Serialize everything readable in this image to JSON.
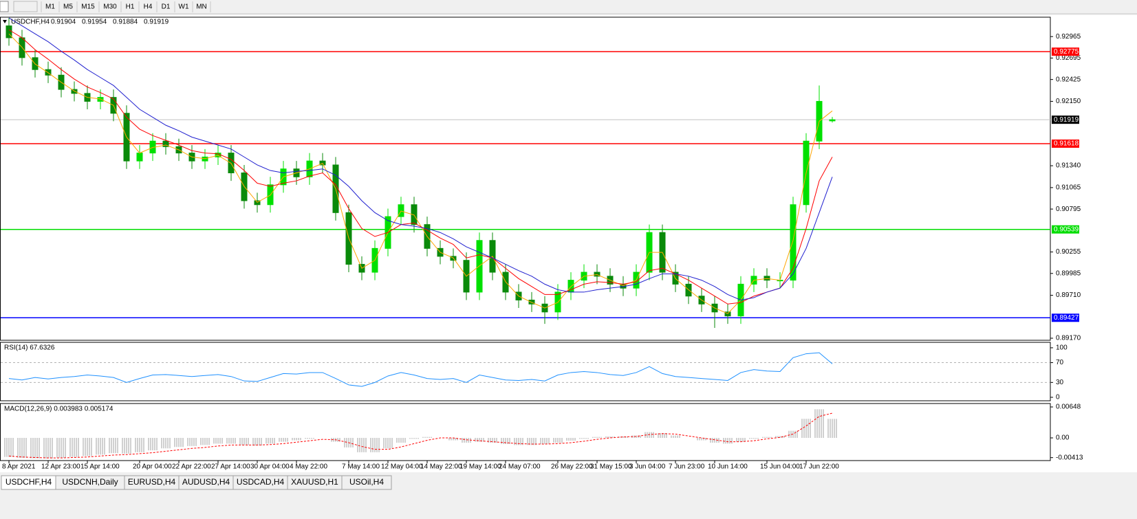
{
  "toolbar": {
    "timeframes": [
      "M1",
      "M5",
      "M15",
      "M30",
      "H1",
      "H4",
      "D1",
      "W1",
      "MN"
    ]
  },
  "tabs": [
    "USDCHF,H4",
    "USDCNH,Daily",
    "EURUSD,H4",
    "AUDUSD,H4",
    "USDCAD,H4",
    "XAUUSD,H1",
    "USOil,H4"
  ],
  "chart_data": [
    {
      "type": "candlestick",
      "title": "USDCHF,H4",
      "categories": [
        "8 Apr 2021",
        null,
        null,
        "12 Apr 23:00",
        null,
        null,
        "15 Apr 14:00",
        null,
        null,
        null,
        "20 Apr 04:00",
        null,
        null,
        "22 Apr 22:00",
        null,
        null,
        "27 Apr 14:00",
        null,
        null,
        "30 Apr 04:00",
        null,
        null,
        "4 May 22:00",
        null,
        null,
        null,
        "7 May 14:00",
        null,
        null,
        "12 May 04:00",
        null,
        null,
        "14 May 22:00",
        null,
        null,
        "19 May 14:00",
        null,
        null,
        "24 May 07:00",
        null,
        null,
        null,
        "26 May 22:00",
        null,
        null,
        "31 May 15:00",
        null,
        null,
        "3 Jun 04:00",
        null,
        null,
        "7 Jun 23:00",
        null,
        null,
        "10 Jun 14:00",
        null,
        null,
        null,
        "15 Jun 04:00",
        null,
        null,
        "17 Jun 22:00",
        null,
        null
      ],
      "open": [
        0.931,
        0.9295,
        0.927,
        0.9255,
        0.9248,
        0.923,
        0.9225,
        0.9215,
        0.922,
        0.92,
        0.914,
        0.915,
        0.9165,
        0.9158,
        0.915,
        0.914,
        0.9145,
        0.915,
        0.9125,
        0.909,
        0.9085,
        0.911,
        0.913,
        0.912,
        0.914,
        0.9135,
        0.9075,
        0.901,
        0.9,
        0.903,
        0.907,
        0.9085,
        0.906,
        0.903,
        0.902,
        0.9015,
        0.8975,
        0.904,
        0.9,
        0.8975,
        0.8965,
        0.896,
        0.895,
        0.8975,
        0.899,
        0.9,
        0.8995,
        0.8985,
        0.898,
        0.9,
        0.905,
        0.9,
        0.8985,
        0.897,
        0.896,
        0.895,
        0.8945,
        0.8985,
        0.8995,
        0.899,
        0.899,
        0.9085,
        0.9165,
        0.91904
      ],
      "high": [
        0.932,
        0.9305,
        0.928,
        0.9265,
        0.9258,
        0.924,
        0.9235,
        0.923,
        0.923,
        0.921,
        0.916,
        0.9175,
        0.9175,
        0.9168,
        0.916,
        0.9155,
        0.916,
        0.916,
        0.9135,
        0.91,
        0.912,
        0.914,
        0.914,
        0.915,
        0.915,
        0.9145,
        0.9085,
        0.902,
        0.904,
        0.908,
        0.9095,
        0.9095,
        0.907,
        0.904,
        0.903,
        0.9025,
        0.905,
        0.905,
        0.901,
        0.8985,
        0.8975,
        0.897,
        0.8985,
        0.9,
        0.901,
        0.901,
        0.9005,
        0.8995,
        0.901,
        0.906,
        0.906,
        0.901,
        0.8995,
        0.898,
        0.897,
        0.896,
        0.8995,
        0.9005,
        0.9005,
        0.9,
        0.9095,
        0.9175,
        0.9235,
        0.91954
      ],
      "low": [
        0.9285,
        0.926,
        0.9245,
        0.9238,
        0.922,
        0.9215,
        0.9205,
        0.9205,
        0.919,
        0.913,
        0.913,
        0.914,
        0.9148,
        0.914,
        0.913,
        0.913,
        0.9135,
        0.9115,
        0.908,
        0.9075,
        0.9075,
        0.91,
        0.911,
        0.911,
        0.9125,
        0.9065,
        0.9,
        0.899,
        0.899,
        0.902,
        0.906,
        0.905,
        0.902,
        0.901,
        0.9005,
        0.8965,
        0.8965,
        0.899,
        0.8965,
        0.8955,
        0.895,
        0.8935,
        0.894,
        0.8965,
        0.898,
        0.8985,
        0.8975,
        0.897,
        0.897,
        0.899,
        0.899,
        0.8975,
        0.896,
        0.895,
        0.893,
        0.8935,
        0.8935,
        0.8975,
        0.898,
        0.898,
        0.898,
        0.9075,
        0.9155,
        0.91884
      ],
      "close": [
        0.9295,
        0.927,
        0.9255,
        0.9248,
        0.923,
        0.9225,
        0.9215,
        0.922,
        0.92,
        0.914,
        0.915,
        0.9165,
        0.9158,
        0.915,
        0.914,
        0.9145,
        0.915,
        0.9125,
        0.909,
        0.9085,
        0.911,
        0.913,
        0.912,
        0.914,
        0.9135,
        0.9075,
        0.901,
        0.9,
        0.903,
        0.907,
        0.9085,
        0.906,
        0.903,
        0.902,
        0.9015,
        0.8975,
        0.904,
        0.9,
        0.8975,
        0.8965,
        0.896,
        0.895,
        0.8975,
        0.899,
        0.9,
        0.8995,
        0.8985,
        0.898,
        0.9,
        0.905,
        0.9,
        0.8985,
        0.897,
        0.896,
        0.895,
        0.8945,
        0.8985,
        0.8995,
        0.899,
        0.899,
        0.9085,
        0.9165,
        0.9215,
        0.91919
      ],
      "up_color": "#00e000",
      "down_color": "#0a8a0a",
      "last_color": "#c0c0c0",
      "series": [
        {
          "color": "#ffa500",
          "values": [
            0.93,
            0.9283,
            0.9262,
            0.9251,
            0.9239,
            0.9228,
            0.922,
            0.9218,
            0.921,
            0.917,
            0.915,
            0.9157,
            0.916,
            0.9154,
            0.9145,
            0.9143,
            0.9147,
            0.9137,
            0.9108,
            0.9088,
            0.9097,
            0.912,
            0.9125,
            0.913,
            0.9137,
            0.9105,
            0.9043,
            0.9005,
            0.9015,
            0.905,
            0.9077,
            0.9072,
            0.9045,
            0.9025,
            0.9018,
            0.8995,
            0.9008,
            0.902,
            0.8988,
            0.897,
            0.8962,
            0.8955,
            0.8962,
            0.8982,
            0.8995,
            0.8997,
            0.899,
            0.8983,
            0.899,
            0.9025,
            0.9025,
            0.8992,
            0.8978,
            0.8965,
            0.8955,
            0.8948,
            0.8965,
            0.899,
            0.8992,
            0.899,
            0.904,
            0.9125,
            0.919,
            0.9203
          ]
        },
        {
          "color": "#ff0000",
          "values": [
            0.9305,
            0.9295,
            0.928,
            0.9268,
            0.9255,
            0.9243,
            0.9233,
            0.9226,
            0.9218,
            0.9195,
            0.918,
            0.9172,
            0.9166,
            0.916,
            0.9153,
            0.915,
            0.9149,
            0.9142,
            0.9128,
            0.9112,
            0.9108,
            0.9112,
            0.9115,
            0.9121,
            0.9125,
            0.911,
            0.908,
            0.9055,
            0.9045,
            0.905,
            0.906,
            0.9062,
            0.9053,
            0.9043,
            0.9035,
            0.9018,
            0.9022,
            0.9018,
            0.9005,
            0.8992,
            0.8982,
            0.8972,
            0.8972,
            0.8978,
            0.8985,
            0.8988,
            0.8987,
            0.8985,
            0.8988,
            0.9002,
            0.9005,
            0.8998,
            0.899,
            0.898,
            0.897,
            0.896,
            0.8962,
            0.897,
            0.8975,
            0.898,
            0.9005,
            0.9055,
            0.9115,
            0.9145
          ]
        },
        {
          "color": "#1f1fcf",
          "values": [
            0.932,
            0.931,
            0.93,
            0.929,
            0.9278,
            0.9267,
            0.9255,
            0.9245,
            0.9235,
            0.922,
            0.9205,
            0.9195,
            0.9185,
            0.9178,
            0.917,
            0.9165,
            0.916,
            0.9155,
            0.9145,
            0.9135,
            0.9128,
            0.9125,
            0.9127,
            0.9128,
            0.913,
            0.9122,
            0.9108,
            0.909,
            0.9075,
            0.9065,
            0.906,
            0.9058,
            0.9055,
            0.905,
            0.9042,
            0.9032,
            0.9025,
            0.9018,
            0.901,
            0.9002,
            0.8995,
            0.8985,
            0.8978,
            0.8975,
            0.8975,
            0.8978,
            0.898,
            0.8982,
            0.8985,
            0.8992,
            0.8998,
            0.8998,
            0.8995,
            0.899,
            0.8982,
            0.8972,
            0.8965,
            0.8968,
            0.8975,
            0.898,
            0.8998,
            0.903,
            0.9075,
            0.912
          ]
        }
      ],
      "levels": [
        {
          "value": 0.92775,
          "color": "#ff0000"
        },
        {
          "value": 0.91618,
          "color": "#ff0000"
        },
        {
          "value": 0.90539,
          "color": "#00dd00"
        },
        {
          "value": 0.89427,
          "color": "#0000ff"
        }
      ],
      "ylim": [
        0.89144,
        0.93209
      ],
      "yticks": [
        0.92965,
        0.92695,
        0.92425,
        {
          "value": 0.9215,
          "label": "0.92150"
        },
        {
          "value": 0.9134,
          "label": "0.91340"
        },
        0.91065,
        0.90795,
        0.90255,
        0.89985,
        {
          "value": 0.8971,
          "label": "0.89710"
        },
        {
          "value": 0.8917,
          "label": "0.89170"
        }
      ]
    },
    {
      "type": "line",
      "title": "RSI(14) 67.6326",
      "color": "#1e90ff",
      "values": [
        38,
        35,
        40,
        37,
        40,
        42,
        45,
        43,
        40,
        30,
        38,
        45,
        46,
        44,
        42,
        44,
        46,
        42,
        33,
        32,
        40,
        48,
        47,
        50,
        50,
        38,
        25,
        22,
        30,
        43,
        50,
        45,
        38,
        36,
        38,
        30,
        45,
        40,
        35,
        34,
        36,
        33,
        45,
        50,
        52,
        50,
        46,
        44,
        50,
        62,
        48,
        42,
        40,
        38,
        36,
        34,
        50,
        56,
        53,
        52,
        80,
        88,
        90,
        67.6326
      ],
      "levels": [
        70,
        30
      ],
      "ylim": [
        -7,
        111
      ],
      "yticks": [
        100,
        70,
        30,
        0
      ]
    },
    {
      "type": "macd",
      "title": "MACD(12,26,9) 0.003983 0.005174",
      "histogram_color": "#a0a0a0",
      "signal_color": "#ff0000",
      "histogram": [
        -0.004,
        -0.0042,
        -0.0043,
        -0.0043,
        -0.0042,
        -0.004,
        -0.0038,
        -0.0035,
        -0.0032,
        -0.0033,
        -0.003,
        -0.0026,
        -0.0022,
        -0.0019,
        -0.0017,
        -0.0015,
        -0.0012,
        -0.0012,
        -0.0015,
        -0.0016,
        -0.0012,
        -0.0008,
        -0.0005,
        -0.0002,
        0,
        -0.0008,
        -0.002,
        -0.003,
        -0.003,
        -0.0022,
        -0.001,
        -0.0002,
        0.0002,
        0,
        -0.0005,
        -0.001,
        -0.0008,
        -0.001,
        -0.0013,
        -0.0015,
        -0.0015,
        -0.0013,
        -0.001,
        -0.0006,
        -0.0002,
        0.0002,
        0.0003,
        0.0003,
        0.0005,
        0.0012,
        0.001,
        0.0005,
        0,
        -0.0005,
        -0.001,
        -0.0012,
        -0.0008,
        -0.0002,
        0.0002,
        0.0004,
        0.0015,
        0.004,
        0.006,
        0.003983
      ],
      "signal": [
        -0.0038,
        -0.004,
        -0.0041,
        -0.0042,
        -0.0042,
        -0.0041,
        -0.004,
        -0.0038,
        -0.0036,
        -0.0035,
        -0.0033,
        -0.0031,
        -0.0028,
        -0.0025,
        -0.0022,
        -0.002,
        -0.0017,
        -0.0015,
        -0.0015,
        -0.0015,
        -0.0014,
        -0.0012,
        -0.0009,
        -0.0006,
        -0.0003,
        -0.0004,
        -0.001,
        -0.0018,
        -0.0024,
        -0.0024,
        -0.0019,
        -0.0012,
        -0.0005,
        0,
        0,
        -0.0004,
        -0.0006,
        -0.0008,
        -0.001,
        -0.0012,
        -0.0013,
        -0.0013,
        -0.0012,
        -0.001,
        -0.0007,
        -0.0003,
        0,
        0.0002,
        0.0003,
        0.0007,
        0.0009,
        0.0008,
        0.0004,
        0,
        -0.0004,
        -0.0008,
        -0.0008,
        -0.0006,
        -0.0002,
        0.0001,
        0.0008,
        0.0025,
        0.0045,
        0.005174
      ],
      "ylim": [
        -0.00475,
        0.0072
      ],
      "yticks": [
        0.00648,
        {
          "value": 0,
          "label": "0.00"
        },
        -0.00413
      ]
    }
  ]
}
